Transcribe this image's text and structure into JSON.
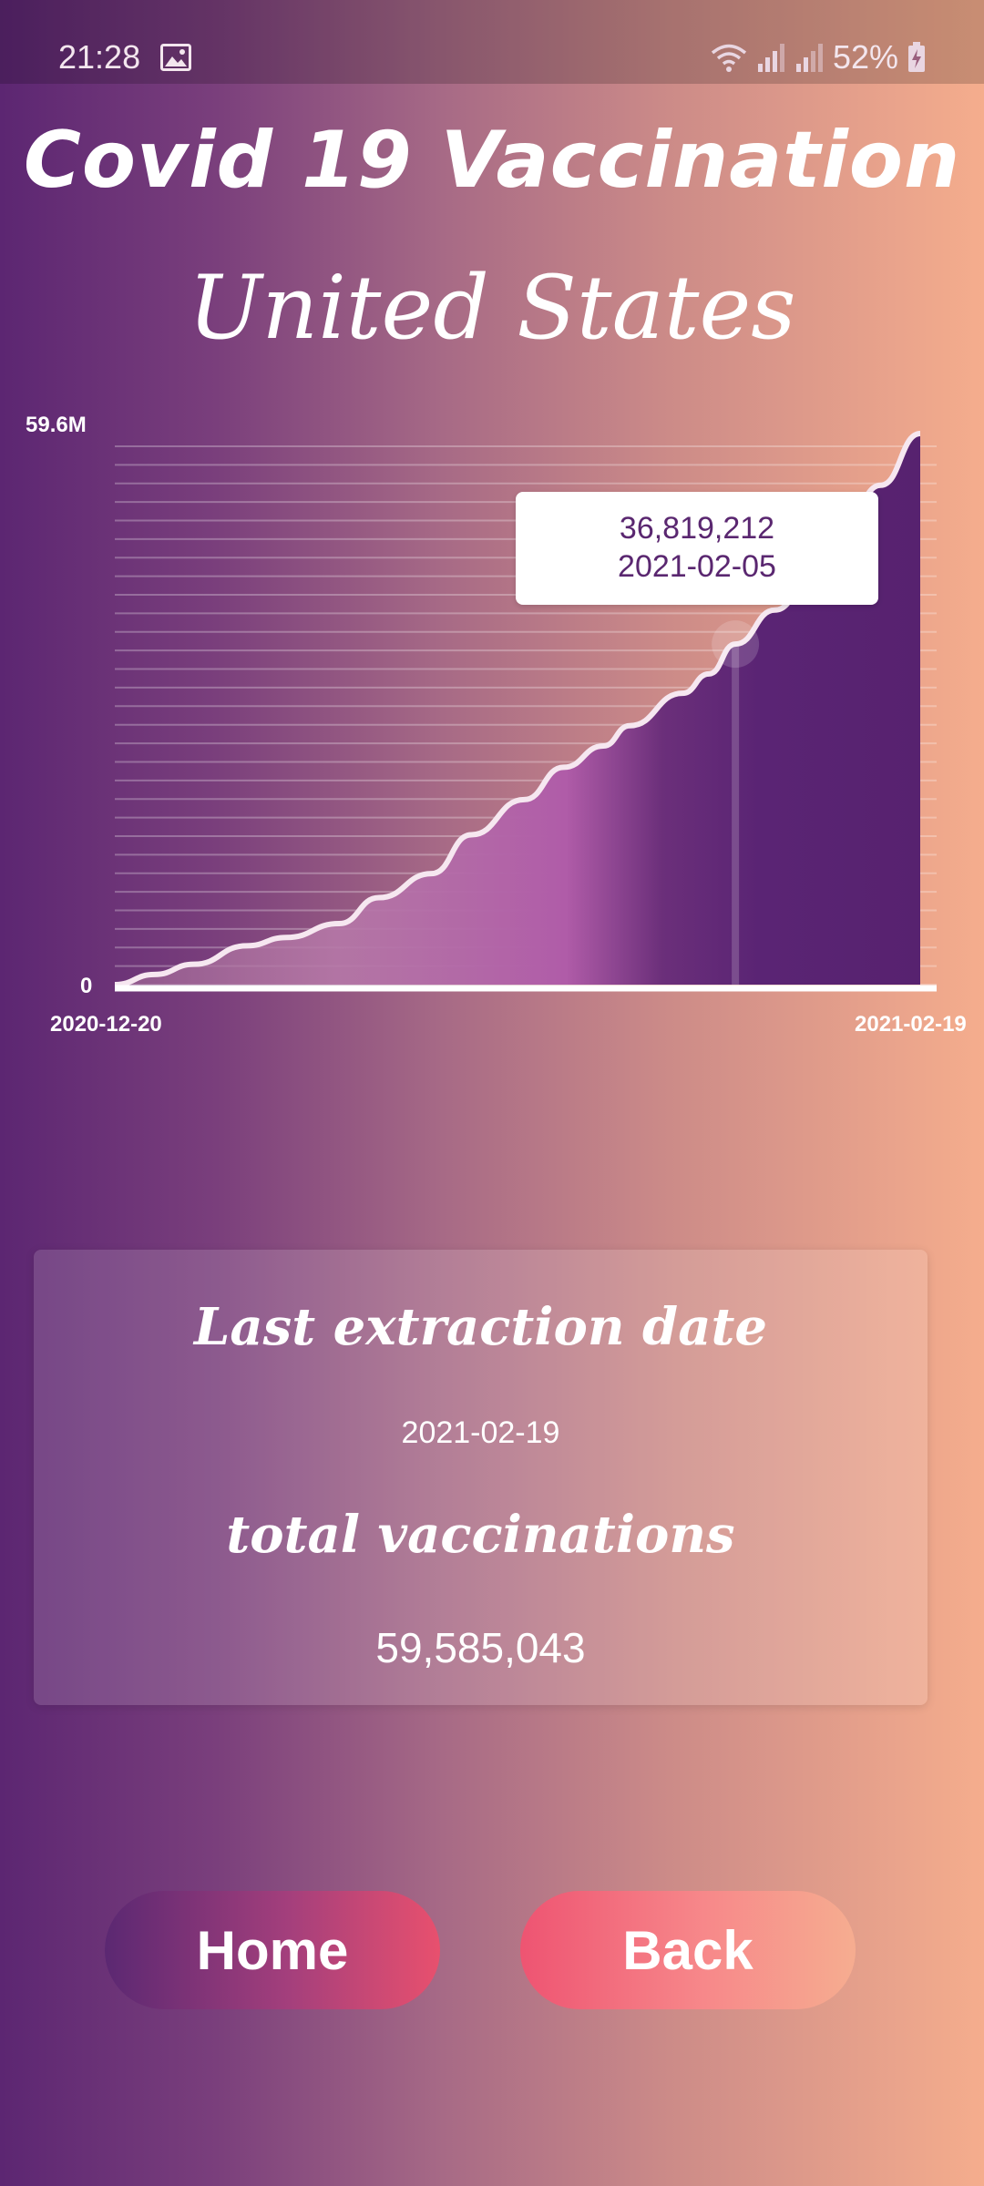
{
  "status_bar": {
    "time": "21:28",
    "battery": "52%",
    "icons": [
      "gallery-icon",
      "wifi-icon",
      "signal-icon",
      "signal-icon",
      "battery-charging-icon"
    ]
  },
  "header": {
    "title": "Covid 19 Vaccination",
    "country": "United States"
  },
  "chart_data": {
    "type": "area",
    "y_max_label": "59.6M",
    "y_min_label": "0",
    "x_start_label": "2020-12-20",
    "x_end_label": "2021-02-19",
    "ylim": [
      0,
      59585043
    ],
    "grid": true,
    "x": [
      "2020-12-20",
      "2020-12-23",
      "2020-12-26",
      "2020-12-30",
      "2021-01-02",
      "2021-01-06",
      "2021-01-09",
      "2021-01-13",
      "2021-01-16",
      "2021-01-20",
      "2021-01-23",
      "2021-01-26",
      "2021-01-28",
      "2021-02-01",
      "2021-02-03",
      "2021-02-05",
      "2021-02-08",
      "2021-02-11",
      "2021-02-13",
      "2021-02-16",
      "2021-02-19"
    ],
    "values": [
      0,
      1100000,
      2200000,
      4200000,
      5100000,
      6600000,
      9400000,
      12000000,
      16200000,
      20000000,
      23500000,
      25800000,
      28000000,
      31500000,
      33600000,
      36819212,
      40500000,
      44500000,
      48800000,
      54000000,
      59585043
    ],
    "highlight": {
      "x": "2021-02-05",
      "value_label": "36,819,212",
      "date_label": "2021-02-05"
    }
  },
  "info_card": {
    "last_extraction_heading": "Last extraction date",
    "last_extraction_value": "2021-02-19",
    "total_heading": "total vaccinations",
    "total_value": "59,585,043"
  },
  "buttons": {
    "home_label": "Home",
    "back_label": "Back"
  }
}
